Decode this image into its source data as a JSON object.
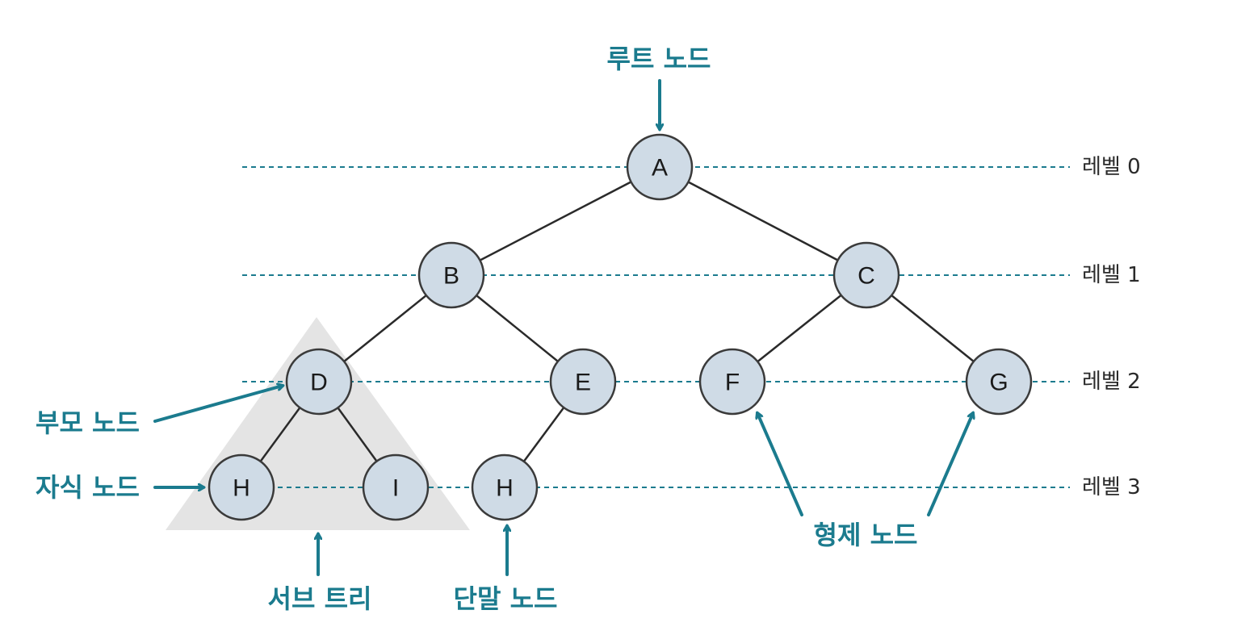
{
  "diagram": {
    "nodes": {
      "A": "A",
      "B": "B",
      "C": "C",
      "D": "D",
      "E": "E",
      "F": "F",
      "G": "G",
      "H1": "H",
      "I": "I",
      "H2": "H"
    },
    "levels": [
      "레벨 0",
      "레벨 1",
      "레벨 2",
      "레벨 3"
    ],
    "annotations": {
      "root": "루트 노드",
      "parent": "부모 노드",
      "child": "자식 노드",
      "subtree": "서브 트리",
      "leaf": "단말 노드",
      "sibling": "형제 노드"
    }
  },
  "colors": {
    "accent": "#1b7b8e",
    "node_fill": "#cfdbe6",
    "subtree_fill": "#e4e4e4"
  }
}
